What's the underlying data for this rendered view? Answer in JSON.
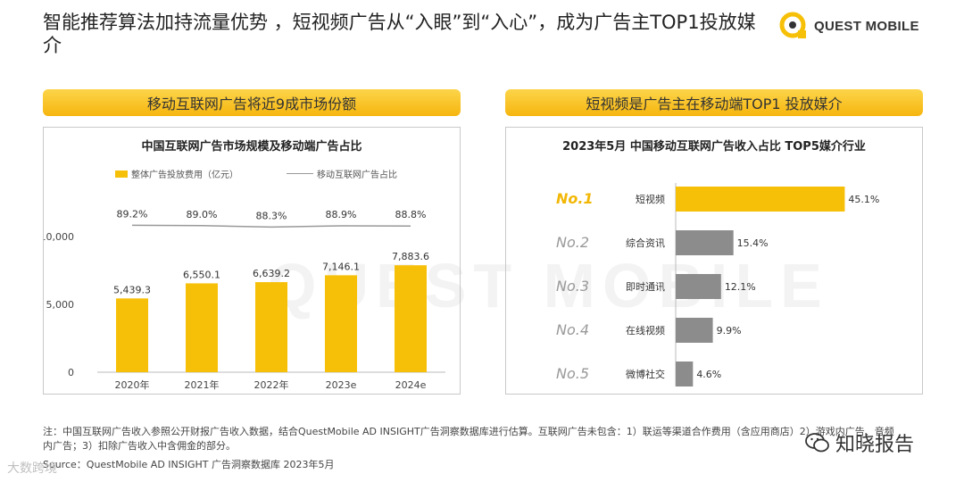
{
  "header": {
    "title": "智能推荐算法加持流量优势 ，短视频广告从“入眼”到“入心”，成为广告主TOP1投放媒介",
    "logo_text": "QUEST MOBILE"
  },
  "left": {
    "banner": "移动互联网广告将近9成市场份额",
    "chart_title": "中国互联网广告市场规模及移动端广告占比",
    "legend_bar": "整体广告投放费用（亿元）",
    "legend_line": "移动互联网广告占比"
  },
  "right": {
    "banner": "短视频是广告主在移动端TOP1 投放媒介",
    "chart_title": "2023年5月 中国移动互联网广告收入占比 TOP5媒介行业"
  },
  "chart_data": [
    {
      "type": "bar",
      "title": "中国互联网广告市场规模及移动端广告占比",
      "categories": [
        "2020年",
        "2021年",
        "2022年",
        "2023e",
        "2024e"
      ],
      "series": [
        {
          "name": "整体广告投放费用（亿元）",
          "type": "bar",
          "values": [
            5439.3,
            6550.1,
            6639.2,
            7146.1,
            7883.6
          ],
          "labels": [
            "5,439.3",
            "6,550.1",
            "6,639.2",
            "7,146.1",
            "7,883.6"
          ],
          "color": "#f7c008"
        },
        {
          "name": "移动互联网广告占比",
          "type": "line",
          "values": [
            89.2,
            89.0,
            88.3,
            88.9,
            88.8
          ],
          "labels": [
            "89.2%",
            "89.0%",
            "88.3%",
            "88.9%",
            "88.8%"
          ],
          "color": "#999999"
        }
      ],
      "ylim": [
        0,
        10000
      ],
      "yticks": [
        0,
        5000,
        10000
      ],
      "ytick_labels": [
        "0",
        "5,000",
        "10,000"
      ],
      "xlabel": "",
      "ylabel": ""
    },
    {
      "type": "bar",
      "orientation": "horizontal",
      "title": "2023年5月 中国移动互联网广告收入占比 TOP5媒介行业",
      "ranks": [
        "No.1",
        "No.2",
        "No.3",
        "No.4",
        "No.5"
      ],
      "categories": [
        "短视频",
        "综合资讯",
        "即时通讯",
        "在线视频",
        "微博社交"
      ],
      "values": [
        45.1,
        15.4,
        12.1,
        9.9,
        4.6
      ],
      "labels": [
        "45.1%",
        "15.4%",
        "12.1%",
        "9.9%",
        "4.6%"
      ],
      "colors": [
        "#f7c008",
        "#8c8c8c",
        "#8c8c8c",
        "#8c8c8c",
        "#8c8c8c"
      ],
      "rank_colors": [
        "#f2b705",
        "#999999",
        "#999999",
        "#999999",
        "#999999"
      ]
    }
  ],
  "watermark": "QUEST MOBILE",
  "footer": {
    "note": "注：中国互联网广告收入参照公开财报广告收入数据，结合QuestMobile AD INSIGHT广告洞察数据库进行估算。互联网广告未包含：1）联运等渠道合作费用（含应用商店）2）游戏内广告、音频内广告；3）扣除广告收入中含佣金的部分。",
    "source": "Source：QuestMobile AD INSIGHT 广告洞察数据库 2023年5月",
    "wechat_label": "知晓报告",
    "corner_mark": "大数跨境"
  },
  "colors": {
    "accent": "#f7c008",
    "gray_bar": "#8c8c8c"
  }
}
